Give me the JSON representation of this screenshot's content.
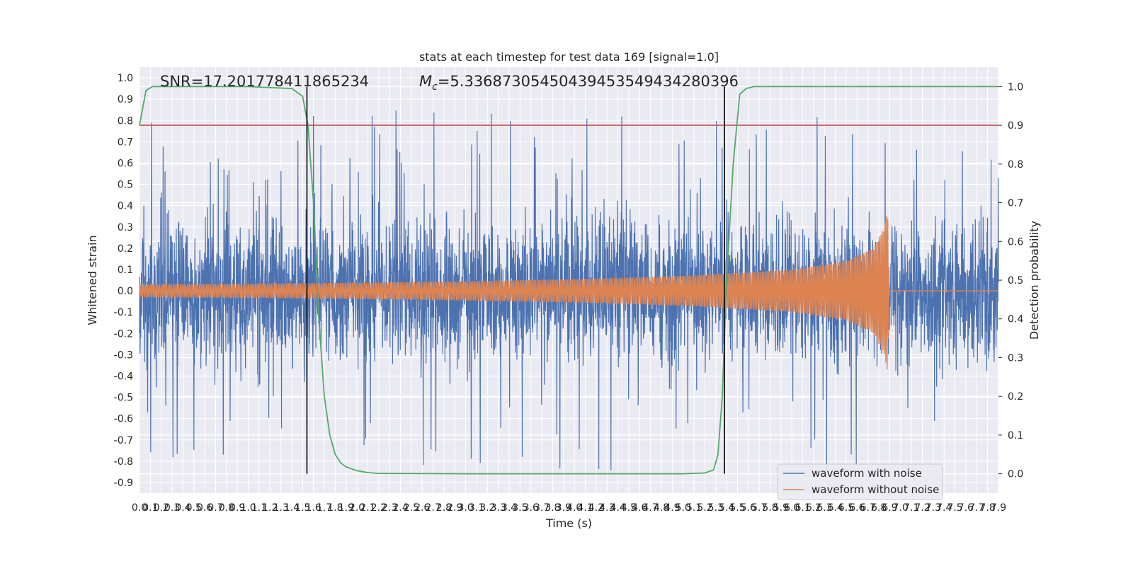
{
  "chart_data": {
    "type": "line",
    "title": "stats at each timestep for test data 169 [signal=1.0]",
    "xlabel": "Time (s)",
    "ylabel": "Whitened strain",
    "ylabel_right": "Detection probability",
    "xlim": [
      0.0,
      7.9
    ],
    "ylim": [
      -0.95,
      1.05
    ],
    "ylim_right": [
      -0.05,
      1.05
    ],
    "x_ticks": [
      "0.0",
      "0.1",
      "0.2",
      "0.3",
      "0.4",
      "0.5",
      "0.6",
      "0.7",
      "0.8",
      "0.9",
      "1.0",
      "1.1",
      "1.2",
      "1.3",
      "1.4",
      "1.5",
      "1.6",
      "1.7",
      "1.8",
      "1.9",
      "2.0",
      "2.1",
      "2.2",
      "2.3",
      "2.4",
      "2.5",
      "2.6",
      "2.7",
      "2.8",
      "2.9",
      "3.0",
      "3.1",
      "3.2",
      "3.3",
      "3.4",
      "3.5",
      "3.6",
      "3.7",
      "3.8",
      "3.9",
      "4.0",
      "4.1",
      "4.2",
      "4.3",
      "4.4",
      "4.5",
      "4.6",
      "4.7",
      "4.8",
      "4.9",
      "5.0",
      "5.1",
      "5.2",
      "5.3",
      "5.4",
      "5.5",
      "5.6",
      "5.7",
      "5.8",
      "5.9",
      "6.0",
      "6.1",
      "6.2",
      "6.3",
      "6.4",
      "6.5",
      "6.6",
      "6.7",
      "6.8",
      "6.9",
      "7.0",
      "7.1",
      "7.2",
      "7.3",
      "7.4",
      "7.5",
      "7.6",
      "7.7",
      "7.8",
      "7.9"
    ],
    "y_ticks": [
      "-0.9",
      "-0.8",
      "-0.7",
      "-0.6",
      "-0.5",
      "-0.4",
      "-0.3",
      "-0.2",
      "-0.1",
      "0.0",
      "0.1",
      "0.2",
      "0.3",
      "0.4",
      "0.5",
      "0.6",
      "0.7",
      "0.8",
      "0.9",
      "1.0"
    ],
    "y_ticks_right": [
      "0.0",
      "0.1",
      "0.2",
      "0.3",
      "0.4",
      "0.5",
      "0.6",
      "0.7",
      "0.8",
      "0.9",
      "1.0"
    ],
    "annotations": {
      "snr": "SNR=17.201778411865234",
      "mc_symbol": "M",
      "mc_sub": "c",
      "mc_value": "=5.33687305450439453549434280396"
    },
    "grid": true,
    "legend_position": "lower-right",
    "series": [
      {
        "name": "waveform with noise",
        "color": "#4c72b0",
        "axis": "left",
        "noise_level": 0.3,
        "max": 1.0,
        "min": -0.86
      },
      {
        "name": "waveform without noise",
        "color": "#dd8452",
        "axis": "left",
        "x": [
          0.0,
          1.0,
          2.0,
          3.0,
          4.0,
          5.0,
          6.0,
          6.5,
          6.75,
          6.85,
          6.88,
          6.9,
          7.9
        ],
        "amplitude": [
          0.03,
          0.033,
          0.038,
          0.045,
          0.055,
          0.07,
          0.1,
          0.14,
          0.2,
          0.3,
          0.38,
          0.0,
          0.0
        ]
      },
      {
        "color": "#55a868",
        "axis": "right",
        "x": [
          0.0,
          0.06,
          0.12,
          0.5,
          1.0,
          1.4,
          1.5,
          1.55,
          1.6,
          1.65,
          1.7,
          1.75,
          1.8,
          1.85,
          1.9,
          2.0,
          2.1,
          2.2,
          3.0,
          4.0,
          5.0,
          5.2,
          5.28,
          5.32,
          5.36,
          5.4,
          5.46,
          5.52,
          5.58,
          5.65,
          7.9
        ],
        "y": [
          0.9,
          0.99,
          1.0,
          1.0,
          1.0,
          0.995,
          0.975,
          0.9,
          0.7,
          0.4,
          0.2,
          0.1,
          0.05,
          0.028,
          0.018,
          0.008,
          0.003,
          0.001,
          0.0,
          0.0,
          0.0,
          0.002,
          0.01,
          0.05,
          0.2,
          0.5,
          0.8,
          0.98,
          0.995,
          1.0,
          1.0
        ]
      },
      {
        "color": "#c44e52",
        "axis": "right",
        "x": [
          0.0,
          7.9
        ],
        "y": [
          0.9,
          0.9
        ]
      }
    ],
    "vertical_lines": [
      1.54,
      5.38
    ]
  }
}
